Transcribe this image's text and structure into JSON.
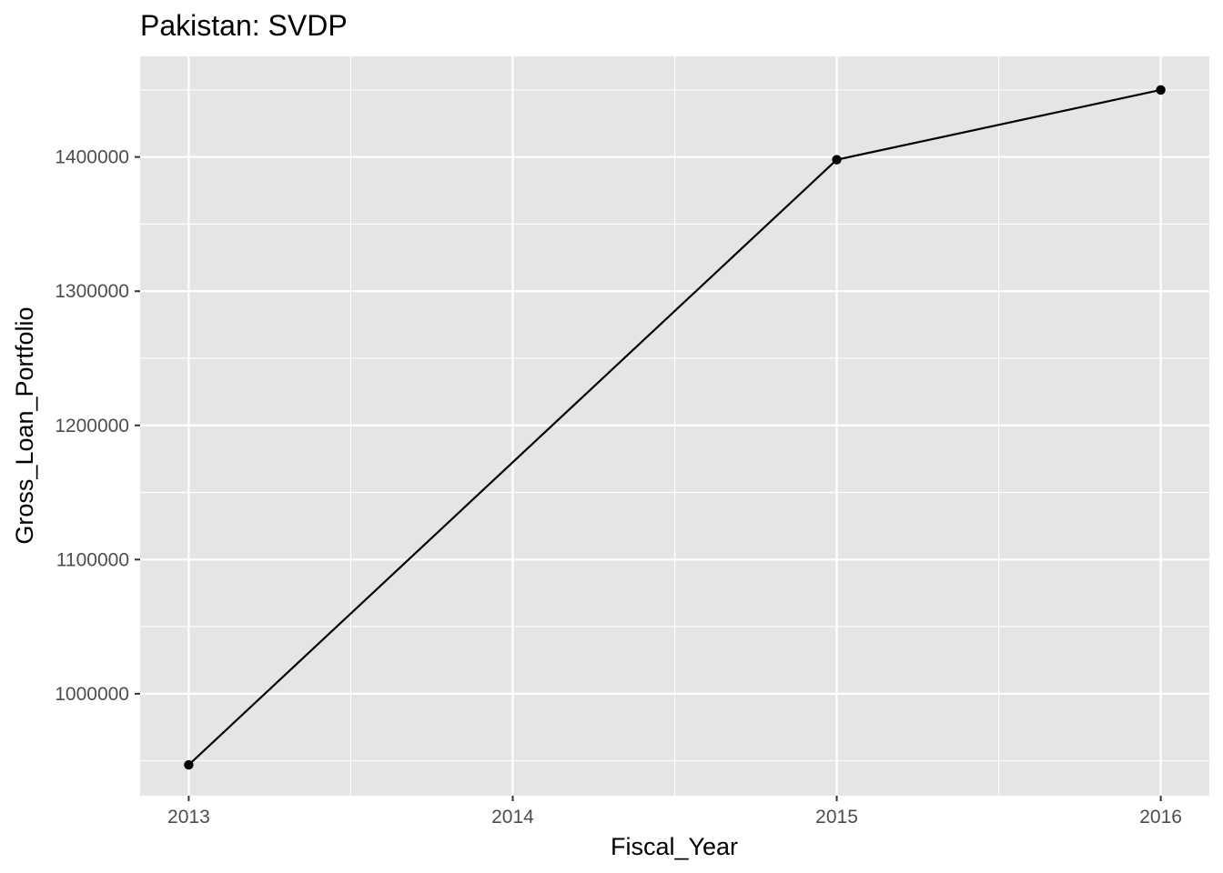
{
  "chart_data": {
    "type": "line",
    "title": "Pakistan:  SVDP",
    "xlabel": "Fiscal_Year",
    "ylabel": "Gross_Loan_Portfolio",
    "x": [
      2013,
      2015,
      2016
    ],
    "series": [
      {
        "values": [
          947000,
          1398000,
          1450000
        ]
      }
    ],
    "xlim": [
      2012.85,
      2016.15
    ],
    "ylim": [
      924000,
      1475000
    ],
    "x_ticks": [
      2013,
      2014,
      2015,
      2016
    ],
    "x_tick_labels": [
      "2013",
      "2014",
      "2015",
      "2016"
    ],
    "y_ticks": [
      1000000,
      1100000,
      1200000,
      1300000,
      1400000
    ],
    "y_tick_labels": [
      "1000000",
      "1100000",
      "1200000",
      "1300000",
      "1400000"
    ],
    "grid": true,
    "markers": true,
    "colors": {
      "panel_background": "#e5e5e5",
      "grid_major": "#ffffff",
      "line": "#000000",
      "tick_label": "#4d4d4d"
    }
  }
}
